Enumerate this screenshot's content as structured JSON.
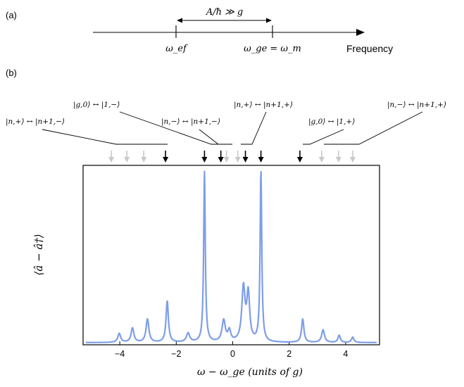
{
  "panel_a": {
    "label": "(a)",
    "arrow_label": "A/ħ ≫ g",
    "marker_left_label": "ω_ef",
    "marker_right_label": "ω_ge = ω_m",
    "axis_label": "Frequency"
  },
  "panel_b": {
    "label": "(b)",
    "transitions": [
      "|n,+⟩ ↔ |n+1,−⟩",
      "|g,0⟩ ↔ |1,−⟩",
      "|n,−⟩ ↔ |n+1,−⟩",
      "|n,+⟩ ↔ |n+1,+⟩",
      "|g,0⟩ ↔ |1,+⟩",
      "|n,−⟩ ↔ |n+1,+⟩"
    ]
  },
  "chart_data": {
    "type": "line",
    "xlabel": "ω − ω_ge  (units of g)",
    "ylabel": "⟨â − â†⟩",
    "xlim": [
      -5.3,
      5.2
    ],
    "ylim": [
      0,
      1.0
    ],
    "xticks": [
      -4,
      -2,
      0,
      2,
      4
    ],
    "xtick_labels": [
      "−4",
      "−2",
      "0",
      "2",
      "4"
    ],
    "line_color": "#7d9ee8",
    "peaks": [
      {
        "x": -4.02,
        "amp": 0.05,
        "w": 0.06
      },
      {
        "x": -3.55,
        "amp": 0.08,
        "w": 0.06
      },
      {
        "x": -3.02,
        "amp": 0.13,
        "w": 0.06
      },
      {
        "x": -2.32,
        "amp": 0.23,
        "w": 0.05
      },
      {
        "x": -1.58,
        "amp": 0.05,
        "w": 0.07
      },
      {
        "x": -1.0,
        "amp": 0.95,
        "w": 0.035
      },
      {
        "x": -0.32,
        "amp": 0.12,
        "w": 0.07
      },
      {
        "x": -0.12,
        "amp": 0.06,
        "w": 0.06
      },
      {
        "x": 0.38,
        "amp": 0.3,
        "w": 0.07
      },
      {
        "x": 0.55,
        "amp": 0.26,
        "w": 0.06
      },
      {
        "x": 1.0,
        "amp": 0.95,
        "w": 0.035
      },
      {
        "x": 2.48,
        "amp": 0.13,
        "w": 0.05
      },
      {
        "x": 3.2,
        "amp": 0.07,
        "w": 0.06
      },
      {
        "x": 3.77,
        "amp": 0.04,
        "w": 0.05
      },
      {
        "x": 4.25,
        "amp": 0.03,
        "w": 0.05
      }
    ],
    "baseline": 0.012,
    "black_arrows_x": [
      -2.38,
      -1.0,
      -0.42,
      0.45,
      1.0,
      2.38
    ],
    "gray_arrows_x": [
      -4.3,
      -3.75,
      -3.15,
      -0.22,
      0.18,
      3.15,
      3.75,
      4.25
    ]
  }
}
